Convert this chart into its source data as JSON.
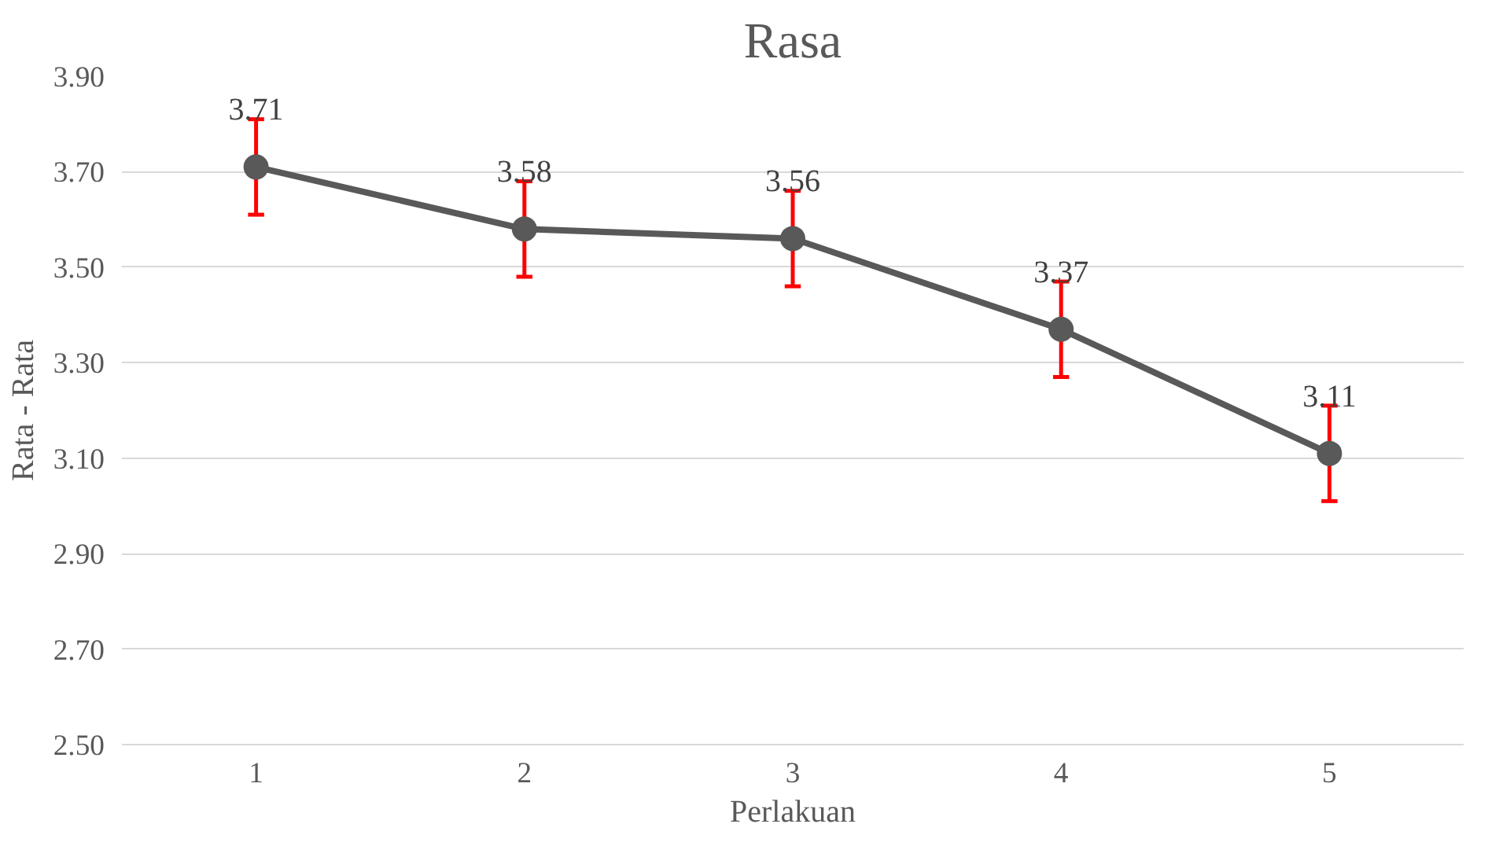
{
  "chart_data": {
    "type": "line",
    "title": "Rasa",
    "xlabel": "Perlakuan",
    "ylabel": "Rata - Rata",
    "categories": [
      "1",
      "2",
      "3",
      "4",
      "5"
    ],
    "series": [
      {
        "color": "#595959",
        "values": [
          3.71,
          3.58,
          3.56,
          3.37,
          3.11
        ],
        "errors": [
          0.1,
          0.1,
          0.1,
          0.1,
          0.1
        ]
      }
    ],
    "ylim": [
      2.5,
      3.9
    ],
    "yticks": [
      {
        "value": 2.5,
        "label": "2.50"
      },
      {
        "value": 2.7,
        "label": "2.70"
      },
      {
        "value": 2.9,
        "label": "2.90"
      },
      {
        "value": 3.1,
        "label": "3.10"
      },
      {
        "value": 3.3,
        "label": "3.30"
      },
      {
        "value": 3.5,
        "label": "3.50"
      },
      {
        "value": 3.7,
        "label": "3.70"
      },
      {
        "value": 3.9,
        "label": "3.90"
      }
    ],
    "grid": "y",
    "marker": "circle",
    "line_style": "solid",
    "data_labels": true
  }
}
